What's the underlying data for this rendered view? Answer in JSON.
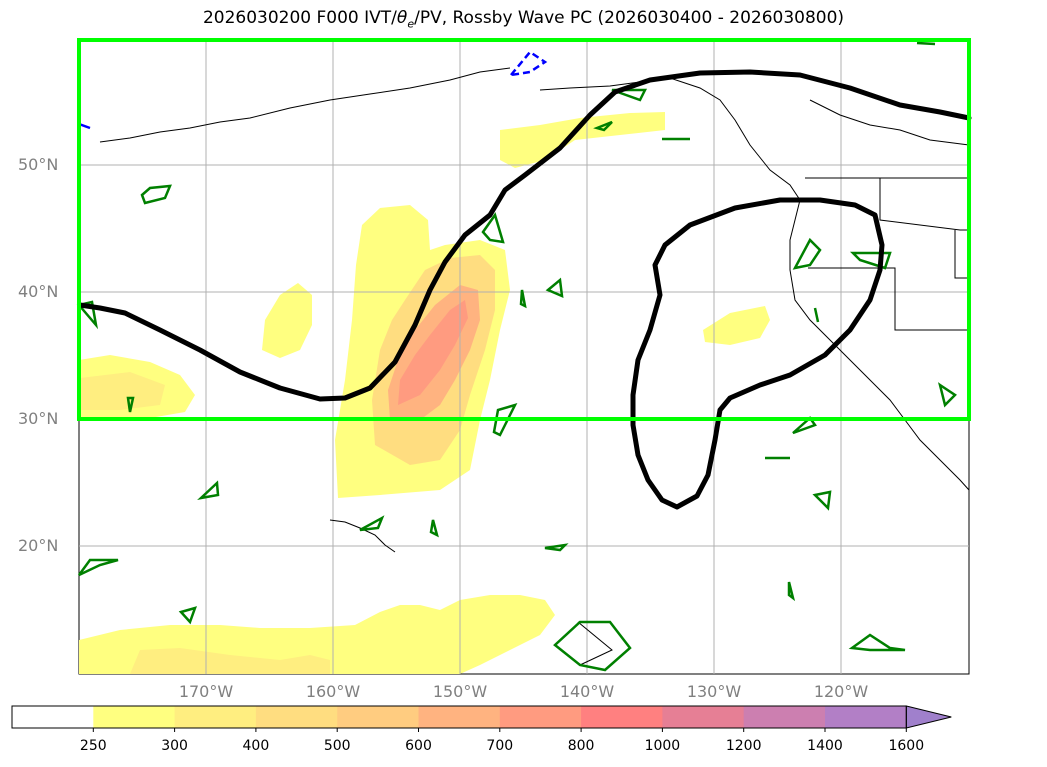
{
  "title": {
    "prefix": "2026030200 F000 IVT/",
    "theta": "θ",
    "theta_sub": "e",
    "suffix": "/PV, Rossby Wave PC (2026030400 - 2026030800)"
  },
  "map": {
    "lat_labels": [
      "50°N",
      "40°N",
      "30°N",
      "20°N"
    ],
    "lon_labels": [
      "170°W",
      "160°W",
      "150°W",
      "140°W",
      "130°W",
      "120°W"
    ],
    "highlight_box_color": "#00ff00",
    "contour_color_black": "#000000",
    "pv_contour_color": "#008000",
    "negative_contour_color": "#0000ff"
  },
  "colorbar": {
    "labels": [
      "250",
      "300",
      "400",
      "500",
      "600",
      "700",
      "800",
      "1000",
      "1200",
      "1400",
      "1600"
    ],
    "colors": [
      "#ffffff",
      "#ffff80",
      "#ffee80",
      "#ffdd80",
      "#ffcc80",
      "#ffb380",
      "#ff9b80",
      "#ff8080",
      "#e67f95",
      "#cc7fb0",
      "#b27fc6"
    ],
    "extend_color": "#a080cc"
  }
}
